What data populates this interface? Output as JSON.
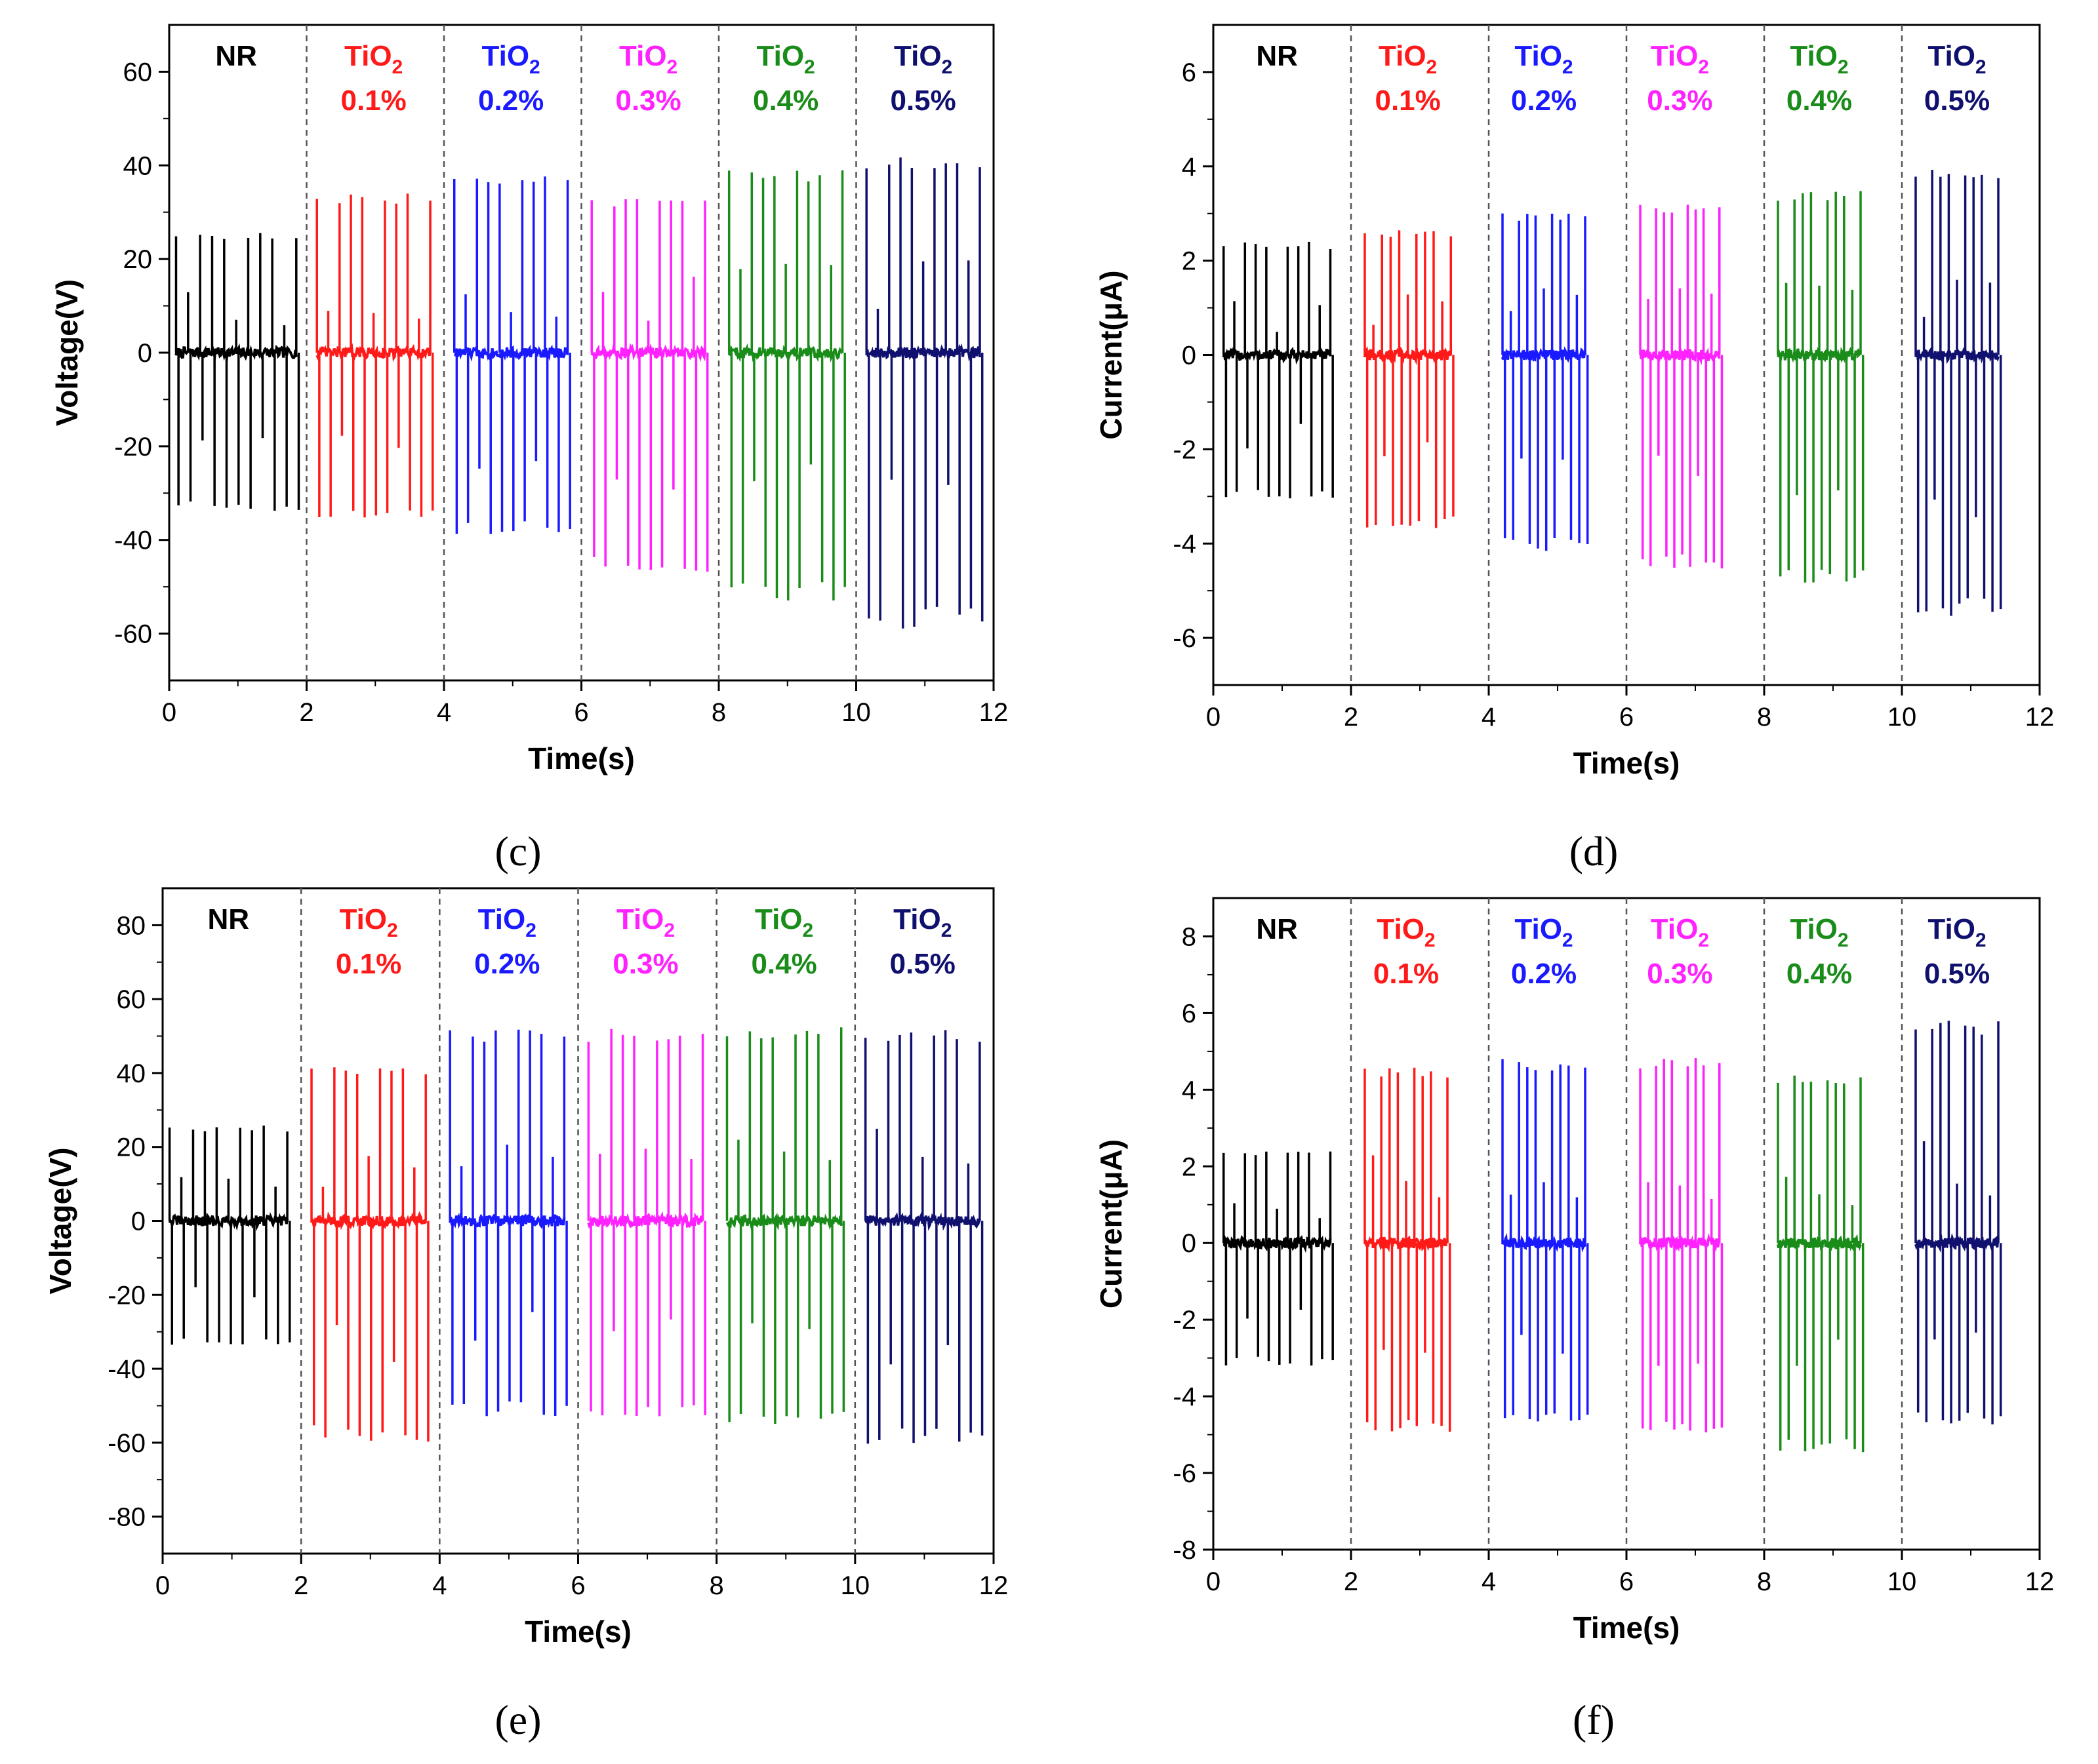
{
  "colors": {
    "NR": "#000000",
    "0.1%": "#ff1a1a",
    "0.2%": "#1a1aff",
    "0.3%": "#ff22ff",
    "0.4%": "#1a8c1a",
    "0.5%": "#10106e"
  },
  "chart_data": [
    {
      "type": "line",
      "panel": "c",
      "caption": "(c)",
      "xlabel": "Time(s)",
      "ylabel": "Voltage(V)",
      "xlim": [
        0,
        12
      ],
      "ylim": [
        -70,
        70
      ],
      "xticks": [
        0,
        2,
        4,
        6,
        8,
        10,
        12
      ],
      "yticks": [
        -60,
        -40,
        -20,
        0,
        20,
        40,
        60
      ],
      "dividers": [
        2,
        4,
        6,
        8,
        10
      ],
      "series": [
        {
          "name": "NR",
          "line1": "NR",
          "line2": "",
          "t_start": 0.1,
          "t_end": 1.85,
          "n": 11,
          "peak_pos": 26,
          "peak_neg": -34,
          "range": "approx. +26 V / -34 V"
        },
        {
          "name": "TiO2 0.1%",
          "line1": "TiO2",
          "line2": "0.1%",
          "t_start": 2.15,
          "t_end": 3.8,
          "n": 11,
          "peak_pos": 34,
          "peak_neg": -36,
          "range": "approx. +34 V / -36 V"
        },
        {
          "name": "TiO2 0.2%",
          "line1": "TiO2",
          "line2": "0.2%",
          "t_start": 4.15,
          "t_end": 5.8,
          "n": 11,
          "peak_pos": 38,
          "peak_neg": -39,
          "range": "approx. +38 V / -39 V"
        },
        {
          "name": "TiO2 0.3%",
          "line1": "TiO2",
          "line2": "0.3%",
          "t_start": 6.15,
          "t_end": 7.8,
          "n": 11,
          "peak_pos": 33,
          "peak_neg": -47,
          "range": "approx. +33 V / -47 V"
        },
        {
          "name": "TiO2 0.4%",
          "line1": "TiO2",
          "line2": "0.4%",
          "t_start": 8.15,
          "t_end": 9.8,
          "n": 11,
          "peak_pos": 39,
          "peak_neg": -53,
          "range": "approx. +39 V / -53 V"
        },
        {
          "name": "TiO2 0.5%",
          "line1": "TiO2",
          "line2": "0.5%",
          "t_start": 10.15,
          "t_end": 11.8,
          "n": 11,
          "peak_pos": 42,
          "peak_neg": -59,
          "range": "approx. +42 V / -59 V"
        }
      ]
    },
    {
      "type": "line",
      "panel": "d",
      "caption": "(d)",
      "xlabel": "Time(s)",
      "ylabel": "Current(μA)",
      "xlim": [
        0,
        12
      ],
      "ylim": [
        -7,
        7
      ],
      "xticks": [
        0,
        2,
        4,
        6,
        8,
        10,
        12
      ],
      "yticks": [
        -6,
        -4,
        -2,
        0,
        2,
        4,
        6
      ],
      "dividers": [
        2,
        4,
        6,
        8,
        10
      ],
      "series": [
        {
          "name": "NR",
          "line1": "NR",
          "line2": "",
          "t_start": 0.15,
          "t_end": 1.7,
          "n": 11,
          "peak_pos": 2.4,
          "peak_neg": -3.1,
          "range": "approx. +2.4 μA / -3.1 μA"
        },
        {
          "name": "TiO2 0.1%",
          "line1": "TiO2",
          "line2": "0.1%",
          "t_start": 2.2,
          "t_end": 3.45,
          "n": 11,
          "peak_pos": 2.65,
          "peak_neg": -3.7,
          "range": "approx. +2.65 μA / -3.7 μA"
        },
        {
          "name": "TiO2 0.2%",
          "line1": "TiO2",
          "line2": "0.2%",
          "t_start": 4.2,
          "t_end": 5.4,
          "n": 11,
          "peak_pos": 3.05,
          "peak_neg": -4.2,
          "range": "approx. +3.05 μA / -4.2 μA"
        },
        {
          "name": "TiO2 0.3%",
          "line1": "TiO2",
          "line2": "0.3%",
          "t_start": 6.2,
          "t_end": 7.35,
          "n": 11,
          "peak_pos": 3.2,
          "peak_neg": -4.6,
          "range": "approx. +3.2 μA / -4.6 μA"
        },
        {
          "name": "TiO2 0.4%",
          "line1": "TiO2",
          "line2": "0.4%",
          "t_start": 8.2,
          "t_end": 9.4,
          "n": 11,
          "peak_pos": 3.5,
          "peak_neg": -4.9,
          "range": "approx. +3.5 μA / -4.9 μA"
        },
        {
          "name": "TiO2 0.5%",
          "line1": "TiO2",
          "line2": "0.5%",
          "t_start": 10.2,
          "t_end": 11.4,
          "n": 11,
          "peak_pos": 4.0,
          "peak_neg": -5.6,
          "range": "approx. +4.0 μA / -5.6 μA"
        }
      ]
    },
    {
      "type": "line",
      "panel": "e",
      "caption": "(e)",
      "xlabel": "Time(s)",
      "ylabel": "Voltage(V)",
      "xlim": [
        0,
        12
      ],
      "ylim": [
        -90,
        90
      ],
      "xticks": [
        0,
        2,
        4,
        6,
        8,
        10,
        12
      ],
      "yticks": [
        -80,
        -60,
        -40,
        -20,
        0,
        20,
        40,
        60,
        80
      ],
      "dividers": [
        2,
        4,
        6,
        8,
        10
      ],
      "series": [
        {
          "name": "NR",
          "line1": "NR",
          "line2": "",
          "t_start": 0.1,
          "t_end": 1.8,
          "n": 11,
          "peak_pos": 26,
          "peak_neg": -34,
          "range": "approx. +26 V / -34 V"
        },
        {
          "name": "TiO2 0.1%",
          "line1": "TiO2",
          "line2": "0.1%",
          "t_start": 2.15,
          "t_end": 3.8,
          "n": 11,
          "peak_pos": 42,
          "peak_neg": -60,
          "range": "approx. +42 V / -60 V"
        },
        {
          "name": "TiO2 0.2%",
          "line1": "TiO2",
          "line2": "0.2%",
          "t_start": 4.15,
          "t_end": 5.8,
          "n": 11,
          "peak_pos": 52,
          "peak_neg": -53,
          "range": "approx. +52 V / -53 V"
        },
        {
          "name": "TiO2 0.3%",
          "line1": "TiO2",
          "line2": "0.3%",
          "t_start": 6.15,
          "t_end": 7.8,
          "n": 11,
          "peak_pos": 52,
          "peak_neg": -54,
          "range": "approx. +52 V / -54 V"
        },
        {
          "name": "TiO2 0.4%",
          "line1": "TiO2",
          "line2": "0.4%",
          "t_start": 8.15,
          "t_end": 9.8,
          "n": 11,
          "peak_pos": 53,
          "peak_neg": -56,
          "range": "approx. +53 V / -56 V"
        },
        {
          "name": "TiO2 0.5%",
          "line1": "TiO2",
          "line2": "0.5%",
          "t_start": 10.15,
          "t_end": 11.8,
          "n": 11,
          "peak_pos": 52,
          "peak_neg": -61,
          "range": "approx. +52 V / -61 V"
        }
      ]
    },
    {
      "type": "line",
      "panel": "f",
      "caption": "(f)",
      "xlabel": "Time(s)",
      "ylabel": "Current(μA)",
      "xlim": [
        0,
        12
      ],
      "ylim": [
        -8,
        9
      ],
      "xticks": [
        0,
        2,
        4,
        6,
        8,
        10,
        12
      ],
      "yticks": [
        -8,
        -6,
        -4,
        -2,
        0,
        2,
        4,
        6,
        8
      ],
      "dividers": [
        2,
        4,
        6,
        8,
        10
      ],
      "series": [
        {
          "name": "NR",
          "line1": "NR",
          "line2": "",
          "t_start": 0.15,
          "t_end": 1.7,
          "n": 11,
          "peak_pos": 2.4,
          "peak_neg": -3.2,
          "range": "approx. +2.4 μA / -3.2 μA"
        },
        {
          "name": "TiO2 0.1%",
          "line1": "TiO2",
          "line2": "0.1%",
          "t_start": 2.2,
          "t_end": 3.4,
          "n": 11,
          "peak_pos": 4.6,
          "peak_neg": -5.0,
          "range": "approx. +4.6 μA / -5.0 μA"
        },
        {
          "name": "TiO2 0.2%",
          "line1": "TiO2",
          "line2": "0.2%",
          "t_start": 4.2,
          "t_end": 5.4,
          "n": 11,
          "peak_pos": 4.8,
          "peak_neg": -4.8,
          "range": "approx. +4.8 μA / -4.8 μA"
        },
        {
          "name": "TiO2 0.3%",
          "line1": "TiO2",
          "line2": "0.3%",
          "t_start": 6.2,
          "t_end": 7.35,
          "n": 11,
          "peak_pos": 4.85,
          "peak_neg": -5.0,
          "range": "approx. +4.85 μA / -5.0 μA"
        },
        {
          "name": "TiO2 0.4%",
          "line1": "TiO2",
          "line2": "0.4%",
          "t_start": 8.2,
          "t_end": 9.4,
          "n": 11,
          "peak_pos": 4.4,
          "peak_neg": -5.5,
          "range": "approx. +4.4 μA / -5.5 μA"
        },
        {
          "name": "TiO2 0.5%",
          "line1": "TiO2",
          "line2": "0.5%",
          "t_start": 10.2,
          "t_end": 11.4,
          "n": 11,
          "peak_pos": 5.8,
          "peak_neg": -4.8,
          "range": "approx. +5.8 μA / -4.8 μA"
        }
      ]
    }
  ]
}
